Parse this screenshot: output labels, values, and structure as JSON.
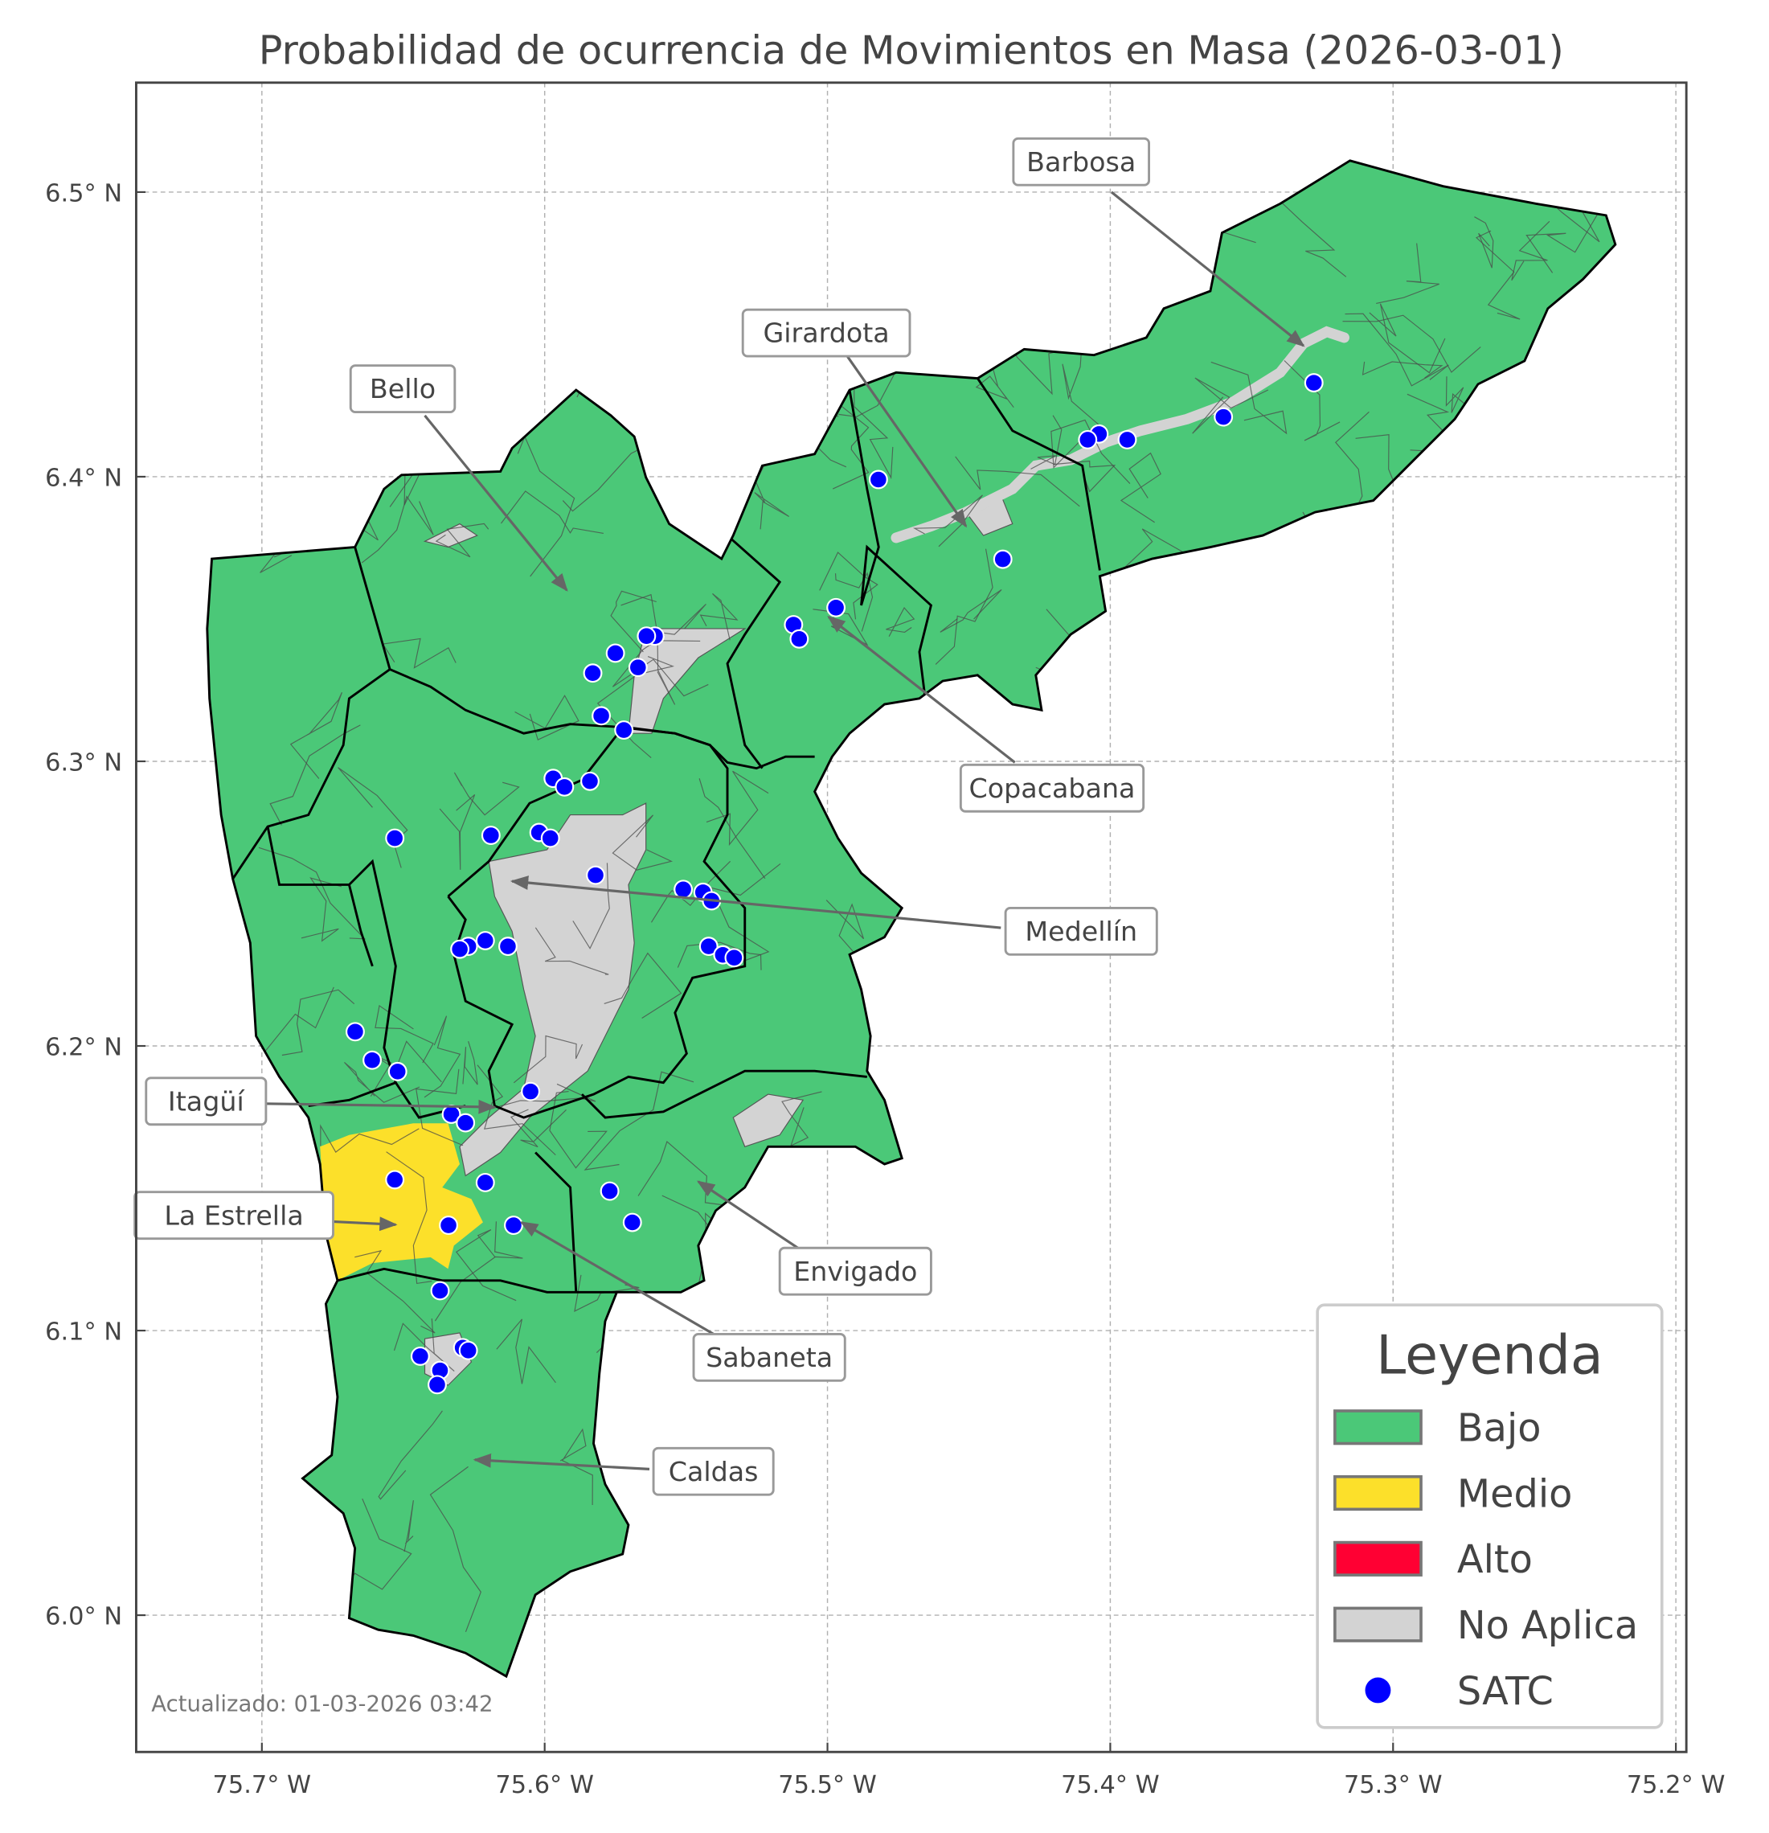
{
  "chart_data": {
    "type": "map",
    "title": "Probabilidad de ocurrencia de Movimientos en Masa (2026-03-01)",
    "footer": "Actualizado: 01-03-2026 03:42",
    "xlim": [
      -75.745,
      -75.196
    ],
    "ylim": [
      5.952,
      6.538
    ],
    "grid": true,
    "x_ticks": [
      {
        "value": -75.7,
        "label": "75.7° W"
      },
      {
        "value": -75.6,
        "label": "75.6° W"
      },
      {
        "value": -75.5,
        "label": "75.5° W"
      },
      {
        "value": -75.4,
        "label": "75.4° W"
      },
      {
        "value": -75.3,
        "label": "75.3° W"
      },
      {
        "value": -75.2,
        "label": "75.2° W"
      }
    ],
    "y_ticks": [
      {
        "value": 6.5,
        "label": "6.5° N"
      },
      {
        "value": 6.4,
        "label": "6.4° N"
      },
      {
        "value": 6.3,
        "label": "6.3° N"
      },
      {
        "value": 6.2,
        "label": "6.2° N"
      },
      {
        "value": 6.1,
        "label": "6.1° N"
      },
      {
        "value": 6.0,
        "label": "6.0° N"
      }
    ],
    "legend": {
      "title": "Leyenda",
      "placement": "bottom-right",
      "items": [
        {
          "label": "Bajo",
          "color": "#4bc878",
          "kind": "patch"
        },
        {
          "label": "Medio",
          "color": "#fce02a",
          "kind": "patch"
        },
        {
          "label": "Alto",
          "color": "#ff0033",
          "kind": "patch"
        },
        {
          "label": "No Aplica",
          "color": "#d3d3d3",
          "kind": "patch"
        },
        {
          "label": "SATC",
          "color": "#0000ff",
          "kind": "point"
        }
      ]
    },
    "municipalities": [
      {
        "name": "Barbosa",
        "level": "Bajo"
      },
      {
        "name": "Girardota",
        "level": "Bajo"
      },
      {
        "name": "Bello",
        "level": "Bajo"
      },
      {
        "name": "Copacabana",
        "level": "Bajo"
      },
      {
        "name": "Medellín",
        "level": "Bajo"
      },
      {
        "name": "Itagüí",
        "level": "Bajo"
      },
      {
        "name": "La Estrella",
        "level": "Medio"
      },
      {
        "name": "Envigado",
        "level": "Bajo"
      },
      {
        "name": "Sabaneta",
        "level": "Bajo"
      },
      {
        "name": "Caldas",
        "level": "Bajo"
      }
    ],
    "satc_points": [
      [
        -75.328,
        6.433
      ],
      [
        -75.36,
        6.421
      ],
      [
        -75.394,
        6.413
      ],
      [
        -75.404,
        6.415
      ],
      [
        -75.408,
        6.413
      ],
      [
        -75.482,
        6.399
      ],
      [
        -75.438,
        6.371
      ],
      [
        -75.497,
        6.354
      ],
      [
        -75.512,
        6.348
      ],
      [
        -75.51,
        6.343
      ],
      [
        -75.561,
        6.344
      ],
      [
        -75.564,
        6.344
      ],
      [
        -75.575,
        6.338
      ],
      [
        -75.567,
        6.333
      ],
      [
        -75.583,
        6.331
      ],
      [
        -75.58,
        6.316
      ],
      [
        -75.572,
        6.311
      ],
      [
        -75.597,
        6.294
      ],
      [
        -75.593,
        6.291
      ],
      [
        -75.584,
        6.293
      ],
      [
        -75.653,
        6.273
      ],
      [
        -75.619,
        6.274
      ],
      [
        -75.602,
        6.275
      ],
      [
        -75.598,
        6.273
      ],
      [
        -75.582,
        6.26
      ],
      [
        -75.551,
        6.255
      ],
      [
        -75.544,
        6.254
      ],
      [
        -75.541,
        6.251
      ],
      [
        -75.542,
        6.235
      ],
      [
        -75.537,
        6.232
      ],
      [
        -75.533,
        6.231
      ],
      [
        -75.621,
        6.237
      ],
      [
        -75.627,
        6.235
      ],
      [
        -75.63,
        6.234
      ],
      [
        -75.613,
        6.235
      ],
      [
        -75.667,
        6.205
      ],
      [
        -75.661,
        6.195
      ],
      [
        -75.652,
        6.191
      ],
      [
        -75.605,
        6.184
      ],
      [
        -75.633,
        6.176
      ],
      [
        -75.628,
        6.173
      ],
      [
        -75.653,
        6.153
      ],
      [
        -75.621,
        6.152
      ],
      [
        -75.577,
        6.149
      ],
      [
        -75.569,
        6.138
      ],
      [
        -75.611,
        6.137
      ],
      [
        -75.634,
        6.137
      ],
      [
        -75.637,
        6.114
      ],
      [
        -75.644,
        6.091
      ],
      [
        -75.629,
        6.094
      ],
      [
        -75.627,
        6.093
      ],
      [
        -75.637,
        6.086
      ],
      [
        -75.638,
        6.081
      ]
    ]
  }
}
